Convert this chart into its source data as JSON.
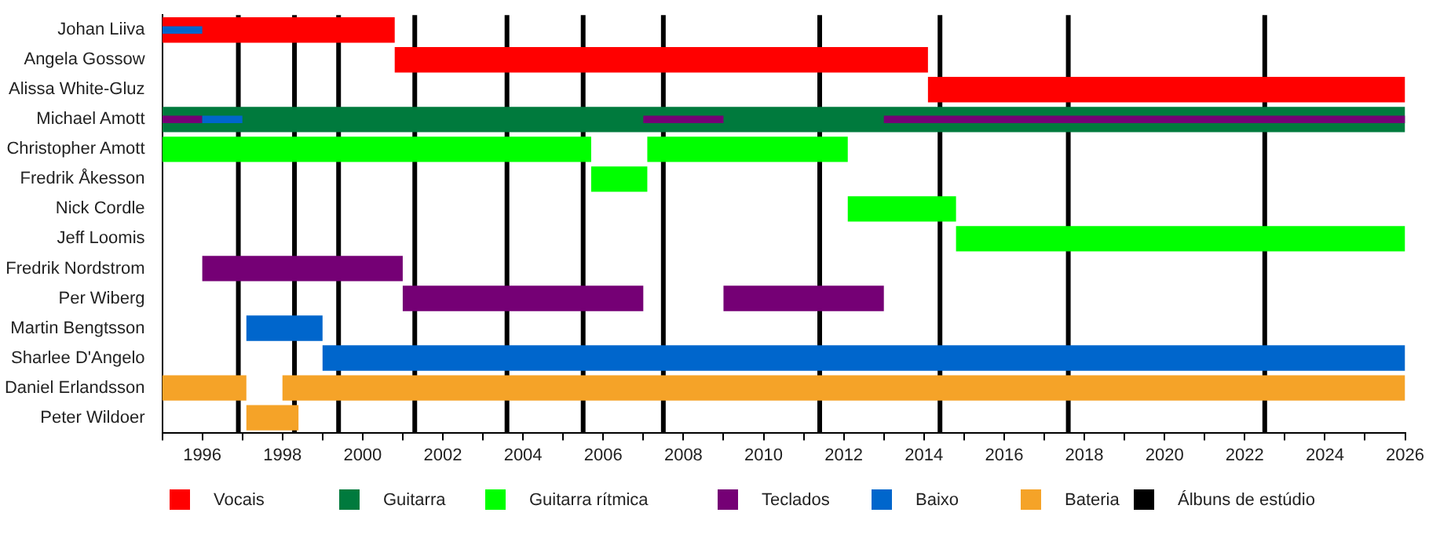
{
  "chart_data": {
    "type": "bar",
    "orientation": "horizontal",
    "legend": "bottom",
    "grid": false,
    "categories": [
      "Johan Liiva",
      "Angela Gossow",
      "Alissa White-Gluz",
      "Michael Amott",
      "Christopher Amott",
      "Fredrik Åkesson",
      "Nick Cordle",
      "Jeff Loomis",
      "Fredrik Nordstrom",
      "Per Wiberg",
      "Martin Bengtsson",
      "Sharlee D'Angelo",
      "Daniel Erlandsson",
      "Peter Wildoer"
    ],
    "xlim": [
      1995,
      2026
    ],
    "xticks": [
      {
        "value": 1995,
        "label": null
      },
      1996,
      {
        "value": 1997,
        "label": null
      },
      1998,
      {
        "value": 1999,
        "label": null
      },
      2000,
      {
        "value": 2001,
        "label": null
      },
      2002,
      {
        "value": 2003,
        "label": null
      },
      2004,
      {
        "value": 2005,
        "label": null
      },
      2006,
      {
        "value": 2007,
        "label": null
      },
      2008,
      {
        "value": 2009,
        "label": null
      },
      2010,
      {
        "value": 2011,
        "label": null
      },
      2012,
      {
        "value": 2013,
        "label": null
      },
      2014,
      {
        "value": 2015,
        "label": null
      },
      2016,
      {
        "value": 2017,
        "label": null
      },
      2018,
      {
        "value": 2019,
        "label": null
      },
      2020,
      {
        "value": 2021,
        "label": null
      },
      2022,
      {
        "value": 2023,
        "label": null
      },
      2024,
      {
        "value": 2025,
        "label": null
      },
      2026
    ],
    "series": [
      {
        "name": "Vocais",
        "color": "#ff0000",
        "base": [
          1995,
          2000.8,
          2014.1,
          null,
          null,
          null,
          null,
          null,
          null,
          null,
          null,
          null,
          null,
          null
        ],
        "values": [
          5.8,
          13.3,
          11.9,
          null,
          null,
          null,
          null,
          null,
          null,
          null,
          null,
          null,
          null,
          null
        ]
      },
      {
        "name": "Guitarra",
        "color": "#007a3d",
        "base": [
          null,
          null,
          null,
          1995,
          null,
          null,
          null,
          null,
          null,
          null,
          null,
          null,
          null,
          null
        ],
        "values": [
          null,
          null,
          null,
          31,
          null,
          null,
          null,
          null,
          null,
          null,
          null,
          null,
          null,
          null
        ]
      },
      {
        "name": "Guitarra rítmica",
        "color": "#00ff00",
        "base": [
          null,
          null,
          null,
          null,
          1995,
          2005.7,
          2012.1,
          2014.8,
          null,
          null,
          null,
          null,
          null,
          null
        ],
        "values": [
          null,
          null,
          null,
          null,
          10.7,
          1.4,
          2.7,
          11.2,
          null,
          null,
          null,
          null,
          null,
          null
        ]
      },
      {
        "color": "#00ff00",
        "base": [
          null,
          null,
          null,
          null,
          2007.1,
          null,
          null,
          null,
          null,
          null,
          null,
          null,
          null,
          null
        ],
        "values": [
          null,
          null,
          null,
          null,
          5,
          null,
          null,
          null,
          null,
          null,
          null,
          null,
          null,
          null
        ]
      },
      {
        "name": "Teclados",
        "color": "#750075",
        "base": [
          null,
          null,
          null,
          null,
          null,
          null,
          null,
          null,
          1996,
          2001,
          null,
          null,
          null,
          null
        ],
        "values": [
          null,
          null,
          null,
          null,
          null,
          null,
          null,
          null,
          5,
          6,
          null,
          null,
          null,
          null
        ]
      },
      {
        "color": "#750075",
        "base": [
          null,
          null,
          null,
          null,
          null,
          null,
          null,
          null,
          null,
          2009,
          null,
          null,
          null,
          null
        ],
        "values": [
          null,
          null,
          null,
          null,
          null,
          null,
          null,
          null,
          null,
          4,
          null,
          null,
          null,
          null
        ]
      },
      {
        "color": "#750075",
        "base": [
          null,
          null,
          null,
          1995,
          null,
          null,
          null,
          null,
          null,
          null,
          null,
          null,
          null,
          null
        ],
        "values": [
          null,
          null,
          null,
          1,
          null,
          null,
          null,
          null,
          null,
          null,
          null,
          null,
          null,
          null
        ]
      },
      {
        "color": "#750075",
        "base": [
          null,
          null,
          null,
          2007,
          null,
          null,
          null,
          null,
          null,
          null,
          null,
          null,
          null,
          null
        ],
        "values": [
          null,
          null,
          null,
          2,
          null,
          null,
          null,
          null,
          null,
          null,
          null,
          null,
          null,
          null
        ]
      },
      {
        "color": "#750075",
        "base": [
          null,
          null,
          null,
          2013,
          null,
          null,
          null,
          null,
          null,
          null,
          null,
          null,
          null,
          null
        ],
        "values": [
          null,
          null,
          null,
          13,
          null,
          null,
          null,
          null,
          null,
          null,
          null,
          null,
          null,
          null
        ]
      },
      {
        "name": "Baixo",
        "color": "#0066cc",
        "base": [
          null,
          null,
          null,
          null,
          null,
          null,
          null,
          null,
          null,
          null,
          1997.1,
          1999,
          null,
          null
        ],
        "values": [
          null,
          null,
          null,
          null,
          null,
          null,
          null,
          null,
          null,
          null,
          1.9,
          27,
          null,
          null
        ]
      },
      {
        "color": "#0066cc",
        "base": [
          1995,
          null,
          null,
          1996,
          null,
          null,
          null,
          null,
          null,
          null,
          null,
          null,
          null,
          null
        ],
        "values": [
          1,
          null,
          null,
          1,
          null,
          null,
          null,
          null,
          null,
          null,
          null,
          null,
          null,
          null
        ]
      },
      {
        "name": "Bateria",
        "color": "#f5a328",
        "base": [
          null,
          null,
          null,
          null,
          null,
          null,
          null,
          null,
          null,
          null,
          null,
          null,
          1995,
          1997.1
        ],
        "values": [
          null,
          null,
          null,
          null,
          null,
          null,
          null,
          null,
          null,
          null,
          null,
          null,
          2.1,
          1.3
        ]
      },
      {
        "color": "#f5a328",
        "base": [
          null,
          null,
          null,
          null,
          null,
          null,
          null,
          null,
          null,
          null,
          null,
          null,
          1998,
          null
        ],
        "values": [
          null,
          null,
          null,
          null,
          null,
          null,
          null,
          null,
          null,
          null,
          null,
          null,
          28,
          null
        ]
      }
    ],
    "ref_lines": [
      {
        "axis": "x",
        "value": 1996.9,
        "label": "Álbuns de estúdio",
        "color": "#000000"
      },
      {
        "axis": "x",
        "value": 1998.3,
        "color": "#000000"
      },
      {
        "axis": "x",
        "value": 1999.4,
        "color": "#000000"
      },
      {
        "axis": "x",
        "value": 2001.3,
        "color": "#000000"
      },
      {
        "axis": "x",
        "value": 2003.6,
        "color": "#000000"
      },
      {
        "axis": "x",
        "value": 2005.5,
        "color": "#000000"
      },
      {
        "axis": "x",
        "value": 2007.5,
        "color": "#000000"
      },
      {
        "axis": "x",
        "value": 2011.4,
        "color": "#000000"
      },
      {
        "axis": "x",
        "value": 2014.4,
        "color": "#000000"
      },
      {
        "axis": "x",
        "value": 2017.6,
        "color": "#000000"
      },
      {
        "axis": "x",
        "value": 2022.5,
        "color": "#000000"
      }
    ]
  }
}
